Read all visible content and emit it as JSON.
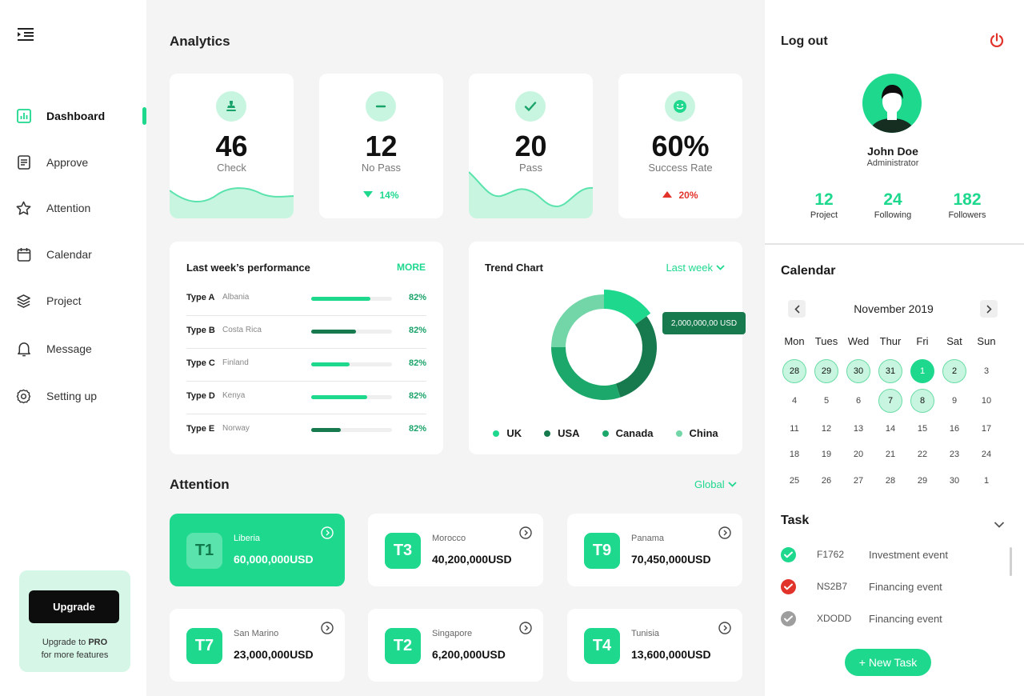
{
  "colors": {
    "accent": "#1ed88e",
    "dark_green": "#177a4e",
    "danger": "#e2332a",
    "muted": "#9e9e9e"
  },
  "sidebar": {
    "menu_icon": "menu-collapse-icon",
    "items": [
      {
        "label": "Dashboard",
        "icon": "chart-icon",
        "active": true
      },
      {
        "label": "Approve",
        "icon": "document-icon"
      },
      {
        "label": "Attention",
        "icon": "star-icon"
      },
      {
        "label": "Calendar",
        "icon": "calendar-icon"
      },
      {
        "label": "Project",
        "icon": "layers-icon"
      },
      {
        "label": "Message",
        "icon": "bell-icon"
      },
      {
        "label": "Setting up",
        "icon": "gear-icon"
      }
    ],
    "upgrade": {
      "button": "Upgrade",
      "text_prefix": "Upgrade to ",
      "text_bold": "PRO",
      "text_suffix": "for more features"
    }
  },
  "analytics": {
    "title": "Analytics",
    "stats": [
      {
        "value": "46",
        "label": "Check",
        "icon": "stamp-icon"
      },
      {
        "value": "12",
        "label": "No Pass",
        "icon": "minus-icon",
        "change": "14%",
        "direction": "down"
      },
      {
        "value": "20",
        "label": "Pass",
        "icon": "check-icon"
      },
      {
        "value": "60%",
        "label": "Success Rate",
        "icon": "smile-icon",
        "change": "20%",
        "direction": "up"
      }
    ]
  },
  "performance": {
    "title": "Last week’s performance",
    "more": "MORE",
    "rows": [
      {
        "type": "Type A",
        "country": "Albania",
        "progress": 0.73,
        "pct": "82%",
        "color": "#1ed88e"
      },
      {
        "type": "Type B",
        "country": "Costa Rica",
        "progress": 0.55,
        "pct": "82%",
        "color": "#177a4e"
      },
      {
        "type": "Type C",
        "country": "Finland",
        "progress": 0.48,
        "pct": "82%",
        "color": "#1ed88e"
      },
      {
        "type": "Type D",
        "country": "Kenya",
        "progress": 0.69,
        "pct": "82%",
        "color": "#1ed88e"
      },
      {
        "type": "Type E",
        "country": "Norway",
        "progress": 0.37,
        "pct": "82%",
        "color": "#177a4e"
      }
    ]
  },
  "trend": {
    "title": "Trend Chart",
    "filter": "Last week",
    "tooltip": "2,000,000,00 USD"
  },
  "chart_data": {
    "type": "pie",
    "categories": [
      "UK",
      "USA",
      "Canada",
      "China"
    ],
    "values": [
      15,
      30,
      30,
      25
    ],
    "colors": [
      "#1ed88e",
      "#177a4e",
      "#1ba86a",
      "#72d6a8"
    ],
    "title": "Trend Chart",
    "legend": "bottom"
  },
  "attention": {
    "title": "Attention",
    "filter": "Global",
    "cards": [
      {
        "badge": "T1",
        "country": "Liberia",
        "amount": "60,000,000USD",
        "primary": true
      },
      {
        "badge": "T3",
        "country": "Morocco",
        "amount": "40,200,000USD"
      },
      {
        "badge": "T9",
        "country": "Panama",
        "amount": "70,450,000USD"
      },
      {
        "badge": "T7",
        "country": "San Marino",
        "amount": "23,000,000USD"
      },
      {
        "badge": "T2",
        "country": "Singapore",
        "amount": "6,200,000USD"
      },
      {
        "badge": "T4",
        "country": "Tunisia",
        "amount": "13,600,000USD"
      }
    ]
  },
  "profile": {
    "logout": "Log out",
    "name": "John Doe",
    "role": "Administrator",
    "stats": [
      {
        "value": "12",
        "label": "Project"
      },
      {
        "value": "24",
        "label": "Following"
      },
      {
        "value": "182",
        "label": "Followers"
      }
    ]
  },
  "calendar": {
    "title": "Calendar",
    "month": "November 2019",
    "weekdays": [
      "Mon",
      "Tues",
      "Wed",
      "Thur",
      "Fri",
      "Sat",
      "Sun"
    ],
    "weeks": [
      [
        "28",
        "29",
        "30",
        "31",
        "1",
        "2",
        "3"
      ],
      [
        "4",
        "5",
        "6",
        "7",
        "8",
        "9",
        "10"
      ],
      [
        "11",
        "12",
        "13",
        "14",
        "15",
        "16",
        "17"
      ],
      [
        "18",
        "19",
        "20",
        "21",
        "22",
        "23",
        "24"
      ],
      [
        "25",
        "26",
        "27",
        "28",
        "29",
        "30",
        "1"
      ]
    ],
    "highlighted": [
      "0-0",
      "0-1",
      "0-2",
      "0-3",
      "0-5",
      "1-3",
      "1-4"
    ],
    "today": "0-4"
  },
  "tasks": {
    "title": "Task",
    "items": [
      {
        "code": "F1762",
        "name": "Investment event",
        "status": "done",
        "color": "#1ed88e"
      },
      {
        "code": "NS2B7",
        "name": "Financing event",
        "status": "failed",
        "color": "#e2332a"
      },
      {
        "code": "XDODD",
        "name": "Financing event",
        "status": "pending",
        "color": "#9e9e9e"
      }
    ],
    "new_task": "+ New Task"
  }
}
